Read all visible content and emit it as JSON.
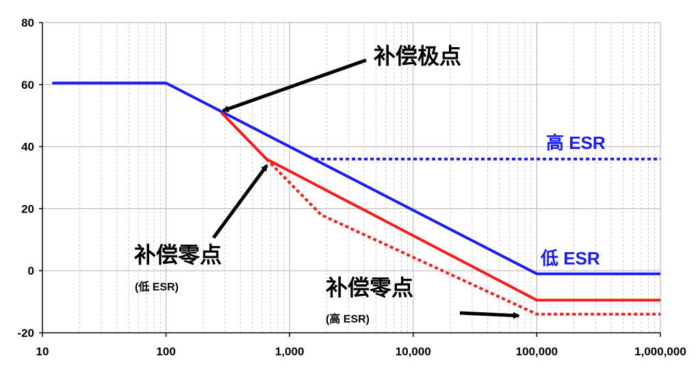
{
  "chart_data": {
    "type": "line",
    "x_scale": "log",
    "xlim": [
      10,
      1000000
    ],
    "ylim": [
      -20,
      80
    ],
    "grid": true,
    "x_tick_labels": [
      "10",
      "100",
      "1,000",
      "10,000",
      "100,000",
      "1,000,000"
    ],
    "x_tick_values": [
      10,
      100,
      1000,
      10000,
      100000,
      1000000
    ],
    "y_tick_labels": [
      "80",
      "60",
      "40",
      "20",
      "0",
      "-20"
    ],
    "y_tick_values": [
      80,
      60,
      40,
      20,
      0,
      -20
    ],
    "series": [
      {
        "color": "#1a1aff",
        "style": "solid",
        "points": [
          [
            12,
            60.5
          ],
          [
            100,
            60.5
          ],
          [
            100000,
            -1
          ],
          [
            1000000,
            -1
          ]
        ]
      },
      {
        "color": "#1a1aff",
        "style": "dotted",
        "points": [
          [
            1600,
            36
          ],
          [
            1000000,
            36
          ]
        ]
      },
      {
        "color": "#ff1a1a",
        "style": "solid",
        "points": [
          [
            280,
            51
          ],
          [
            650,
            36
          ],
          [
            100000,
            -9.5
          ],
          [
            1000000,
            -9.5
          ]
        ]
      },
      {
        "color": "#ff1a1a",
        "style": "dotted",
        "points": [
          [
            650,
            36
          ],
          [
            1800,
            18
          ],
          [
            100000,
            -14
          ],
          [
            1000000,
            -14
          ]
        ]
      }
    ],
    "annotations": [
      {
        "id": "pole",
        "text": "补偿极点",
        "color": "#000000"
      },
      {
        "id": "zero_low",
        "text": "补偿零点",
        "sub": "(低 ESR)",
        "color": "#000000"
      },
      {
        "id": "zero_high",
        "text": "补偿零点",
        "sub": "(高 ESR)",
        "color": "#000000"
      },
      {
        "id": "high_esr",
        "text": "高 ESR",
        "color": "#1a1aff"
      },
      {
        "id": "low_esr",
        "text": "低 ESR",
        "color": "#1a1aff"
      }
    ]
  }
}
